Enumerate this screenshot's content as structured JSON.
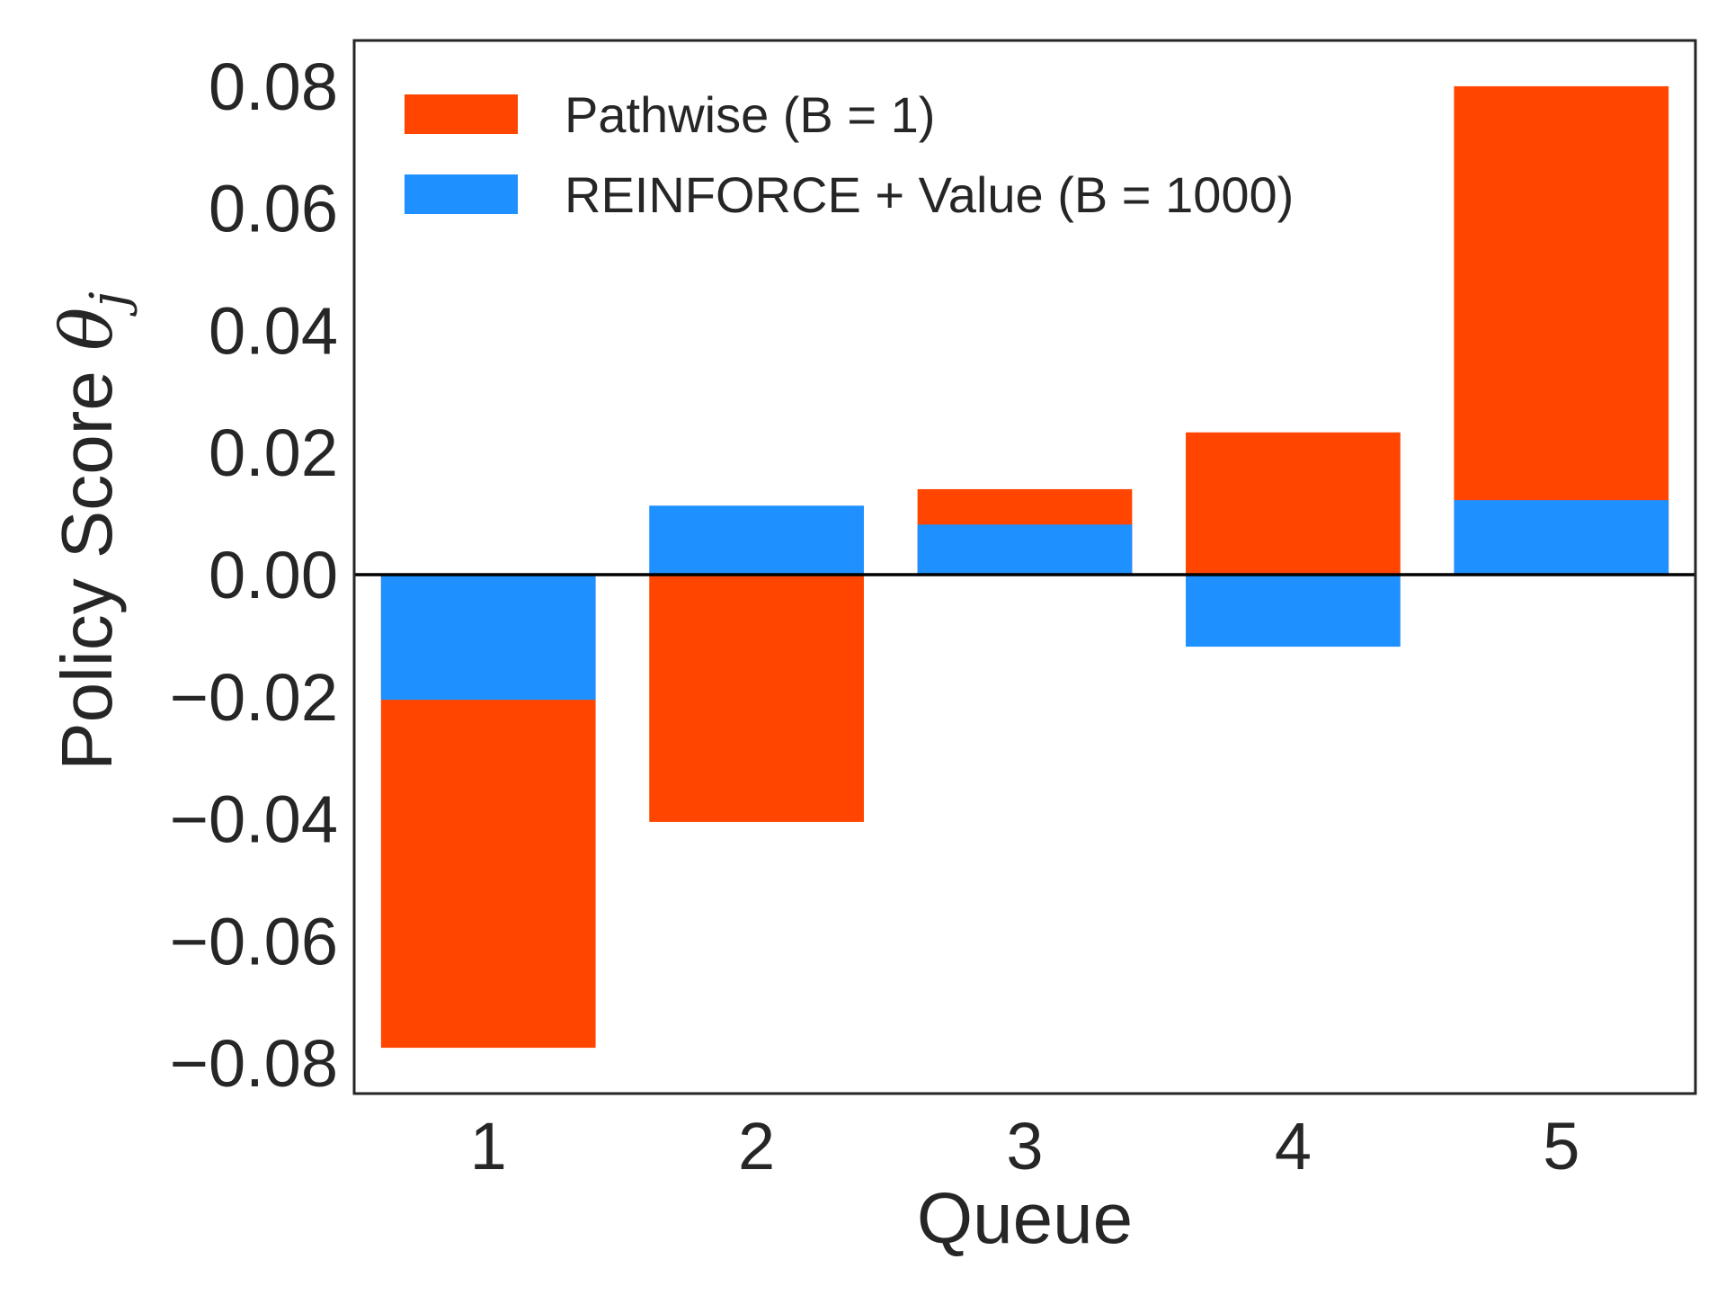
{
  "chart_data": {
    "type": "bar",
    "categories": [
      "1",
      "2",
      "3",
      "4",
      "5"
    ],
    "series": [
      {
        "name": "Pathwise (B = 1)",
        "color": "#FF4500",
        "values": [
          -0.0775,
          -0.0405,
          0.014,
          0.0233,
          0.08
        ]
      },
      {
        "name": "REINFORCE + Value (B = 1000)",
        "color": "#1E90FF",
        "values": [
          -0.0205,
          0.0113,
          0.0082,
          -0.0118,
          0.0122
        ]
      }
    ],
    "xlabel": "Queue",
    "ylabel_text": "Policy Score ",
    "ylabel_symbol": "θ",
    "ylabel_subscript": "j",
    "ylim": [
      -0.085,
      0.0875
    ],
    "yticks": [
      0.08,
      0.06,
      0.04,
      0.02,
      0.0,
      -0.02,
      -0.04,
      -0.06,
      -0.08
    ],
    "ytick_labels": [
      "0.08",
      "0.06",
      "0.04",
      "0.02",
      "0.00",
      "−0.02",
      "−0.04",
      "−0.06",
      "−0.08"
    ],
    "grid": false,
    "legend_position": "top-left",
    "baseline": 0
  }
}
